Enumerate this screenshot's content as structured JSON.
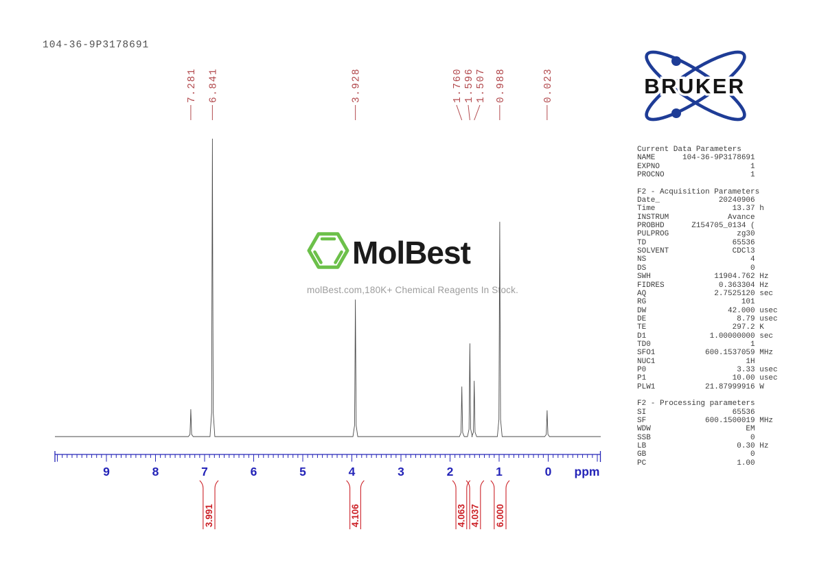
{
  "header": {
    "sample_id": "104-36-9P3178691"
  },
  "bruker": {
    "label": "BRUKER",
    "brand_blue": "#1e3c96",
    "text_color": "#141414"
  },
  "watermark": {
    "brand": "MolBest",
    "tagline": "molBest.com,180K+ Chemical Reagents In Stock.",
    "hexagon_green": "#6cc04a"
  },
  "parameters_text": [
    "Current Data Parameters",
    "NAME      104-36-9P3178691",
    "EXPNO                    1",
    "PROCNO                   1",
    "",
    "F2 - Acquisition Parameters",
    "Date_             20240906",
    "Time                 13.37 h",
    "INSTRUM             Avance",
    "PROBHD      Z154705_0134 (",
    "PULPROG               zg30",
    "TD                   65536",
    "SOLVENT              CDCl3",
    "NS                       4",
    "DS                       0",
    "SWH              11904.762 Hz",
    "FIDRES            0.363304 Hz",
    "AQ               2.7525120 sec",
    "RG                     101",
    "DW                  42.000 usec",
    "DE                    8.79 usec",
    "TE                   297.2 K",
    "D1              1.00000000 sec",
    "TD0                      1",
    "SFO1           600.1537059 MHz",
    "NUC1                    1H",
    "P0                    3.33 usec",
    "P1                   10.00 usec",
    "PLW1           21.87999916 W",
    "",
    "F2 - Processing parameters",
    "SI                   65536",
    "SF             600.1500019 MHz",
    "WDW                     EM",
    "SSB                      0",
    "LB                    0.30 Hz",
    "GB                       0",
    "PC                    1.00"
  ],
  "chart_data": {
    "type": "line",
    "title": "1H NMR spectrum trace",
    "xlabel": "ppm",
    "x_axis": {
      "min": -1.05,
      "max": 10.05,
      "tick_labels": [
        "9",
        "8",
        "7",
        "6",
        "5",
        "4",
        "3",
        "2",
        "1",
        "0"
      ],
      "tick_values": [
        9,
        8,
        7,
        6,
        5,
        4,
        3,
        2,
        1,
        0
      ],
      "minor_tick_step": 0.1,
      "unit_label": "ppm",
      "grid": false
    },
    "peaks": [
      {
        "ppm": 7.281,
        "label": "7.281",
        "rel_height": 0.092,
        "label_ppm": 7.281
      },
      {
        "ppm": 6.841,
        "label": "6.841",
        "rel_height": 1.0,
        "label_ppm": 6.841
      },
      {
        "ppm": 3.928,
        "label": "3.928",
        "rel_height": 0.46,
        "label_ppm": 3.928
      },
      {
        "ppm": 1.76,
        "label": "1.760",
        "rel_height": 0.168,
        "label_ppm": 1.868
      },
      {
        "ppm": 1.596,
        "label": "1.596",
        "rel_height": 0.313,
        "label_ppm": 1.63
      },
      {
        "ppm": 1.507,
        "label": "1.507",
        "rel_height": 0.187,
        "label_ppm": 1.392
      },
      {
        "ppm": 0.988,
        "label": "0.988",
        "rel_height": 0.721,
        "label_ppm": 0.988
      },
      {
        "ppm": 0.023,
        "label": "0.023",
        "rel_height": 0.088,
        "label_ppm": 0.023
      }
    ],
    "integrals": [
      {
        "value": "3.991",
        "ppm_from": 7.03,
        "ppm_to": 6.79
      },
      {
        "value": "4.106",
        "ppm_from": 4.04,
        "ppm_to": 3.82
      },
      {
        "value": "4.063",
        "ppm_from": 1.88,
        "ppm_to": 1.66
      },
      {
        "value": "4.037",
        "ppm_from": 1.6,
        "ppm_to": 1.38
      },
      {
        "value": "6.000",
        "ppm_from": 1.1,
        "ppm_to": 0.86
      }
    ],
    "colors": {
      "axis": "#2424b8",
      "peak_labels": "#b2494d",
      "integrals": "#cc2127",
      "trace": "#4a4a4a"
    }
  }
}
